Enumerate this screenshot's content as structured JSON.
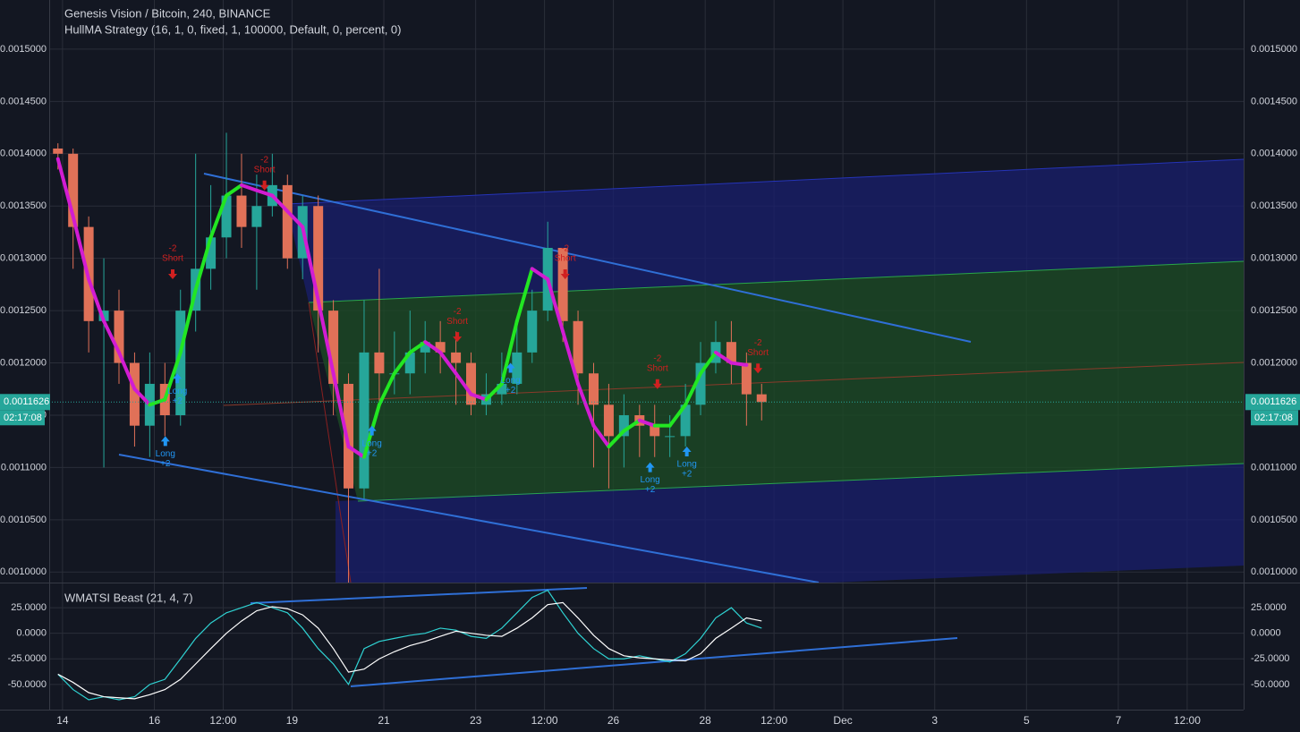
{
  "chart_data": [
    {
      "type": "candlestick",
      "title": "Genesis Vision / Bitcoin, 240, BINANCE",
      "subtitle": "HullMA Strategy (16, 1, 0, fixed, 1, 100000, Default, 0, percent, 0)",
      "x": [
        -0.1,
        0.23,
        0.57,
        0.9,
        1.23,
        1.57,
        1.9,
        2.23,
        2.57,
        2.9,
        3.23,
        3.57,
        3.9,
        4.23,
        4.57,
        4.9,
        5.23,
        5.57,
        5.9,
        6.23,
        6.57,
        6.9,
        7.23,
        7.57,
        7.9,
        8.23,
        8.57,
        8.9,
        9.23,
        9.57,
        9.9,
        10.23,
        10.57,
        10.9,
        11.23,
        11.57,
        11.9,
        12.23,
        12.57,
        12.9,
        13.23,
        13.57,
        13.9,
        14.23,
        14.57,
        14.9,
        15.23
      ],
      "open": [
        0.001405,
        0.0014,
        0.00133,
        0.00124,
        0.00125,
        0.0012,
        0.00114,
        0.00118,
        0.00115,
        0.00125,
        0.00129,
        0.00132,
        0.00136,
        0.00133,
        0.00135,
        0.00137,
        0.0013,
        0.00135,
        0.00125,
        0.00118,
        0.00108,
        0.00121,
        0.00119,
        0.00119,
        0.00121,
        0.00122,
        0.00121,
        0.0012,
        0.00116,
        0.00117,
        0.00118,
        0.00121,
        0.00125,
        0.00131,
        0.00124,
        0.00119,
        0.00116,
        0.00113,
        0.00115,
        0.00114,
        0.00113,
        0.00113,
        0.00116,
        0.0012,
        0.00122,
        0.0012,
        0.00117
      ],
      "high": [
        0.00141,
        0.001405,
        0.00134,
        0.0013,
        0.00127,
        0.00121,
        0.00121,
        0.0012,
        0.00127,
        0.0014,
        0.00137,
        0.00142,
        0.0014,
        0.00138,
        0.0014,
        0.00138,
        0.00136,
        0.00136,
        0.00126,
        0.00119,
        0.00126,
        0.00129,
        0.00123,
        0.00125,
        0.00124,
        0.00124,
        0.00123,
        0.00121,
        0.00119,
        0.00121,
        0.00124,
        0.00127,
        0.001335,
        0.00131,
        0.00125,
        0.0012,
        0.00118,
        0.00117,
        0.00116,
        0.00116,
        0.00115,
        0.00118,
        0.00122,
        0.00124,
        0.00124,
        0.00121,
        0.00118
      ],
      "low": [
        0.001385,
        0.00129,
        0.00121,
        0.0011,
        0.00118,
        0.00112,
        0.00111,
        0.00113,
        0.00114,
        0.00123,
        0.00127,
        0.0013,
        0.00131,
        0.00127,
        0.00134,
        0.00129,
        0.00128,
        0.00121,
        0.00115,
        0.00099,
        0.00107,
        0.00116,
        0.00117,
        0.00117,
        0.00119,
        0.00119,
        0.00116,
        0.00115,
        0.00115,
        0.00116,
        0.00117,
        0.0012,
        0.00124,
        0.00122,
        0.00116,
        0.0011,
        0.00108,
        0.0011,
        0.00111,
        0.00111,
        0.00111,
        0.00112,
        0.00115,
        0.00119,
        0.00118,
        0.00114,
        0.001145
      ],
      "close": [
        0.0014,
        0.00133,
        0.00124,
        0.00125,
        0.0012,
        0.00114,
        0.00118,
        0.00115,
        0.00125,
        0.00129,
        0.00132,
        0.00136,
        0.00133,
        0.00135,
        0.00137,
        0.0013,
        0.00135,
        0.00125,
        0.00118,
        0.00108,
        0.00121,
        0.00119,
        0.00119,
        0.00121,
        0.00122,
        0.00121,
        0.0012,
        0.00116,
        0.00117,
        0.00118,
        0.00121,
        0.00125,
        0.00131,
        0.00124,
        0.00119,
        0.00116,
        0.00113,
        0.00115,
        0.00114,
        0.00113,
        0.00113,
        0.00116,
        0.0012,
        0.00122,
        0.0012,
        0.00117,
        0.0011626
      ],
      "up_color": "#26a69a",
      "down_color": "#e07158",
      "hull": [
        0.001395,
        0.00134,
        0.00128,
        0.00124,
        0.00121,
        0.001175,
        0.00116,
        0.001165,
        0.00121,
        0.00127,
        0.00132,
        0.00136,
        0.00137,
        0.001365,
        0.00136,
        0.001345,
        0.00133,
        0.00126,
        0.00119,
        0.00112,
        0.00111,
        0.00116,
        0.00119,
        0.00121,
        0.00122,
        0.00121,
        0.00119,
        0.00117,
        0.001165,
        0.00118,
        0.00124,
        0.00129,
        0.00128,
        0.00123,
        0.00118,
        0.00114,
        0.00112,
        0.001135,
        0.001145,
        0.00114,
        0.00114,
        0.00116,
        0.00119,
        0.00121,
        0.0012,
        0.001198,
        null
      ],
      "hull_up_color": "#22e622",
      "hull_down_color": "#d21cd2",
      "signals": [
        {
          "x": 2.24,
          "price": 0.00113,
          "label": "Long",
          "size": "+2",
          "color": "#2196f3",
          "direction": "up"
        },
        {
          "x": 2.5,
          "price": 0.00119,
          "label": "Long",
          "size": "+2",
          "color": "#2196f3",
          "direction": "up"
        },
        {
          "x": 2.4,
          "price": 0.00128,
          "label": "Short",
          "size": "-2",
          "color": "#d02020",
          "direction": "down"
        },
        {
          "x": 4.4,
          "price": 0.001365,
          "label": "Short",
          "size": "-2",
          "color": "#d02020",
          "direction": "down"
        },
        {
          "x": 6.74,
          "price": 0.00114,
          "label": "Long",
          "size": "+2",
          "color": "#2196f3",
          "direction": "up"
        },
        {
          "x": 8.6,
          "price": 0.00122,
          "label": "Short",
          "size": "-2",
          "color": "#d02020",
          "direction": "down"
        },
        {
          "x": 9.76,
          "price": 0.0012,
          "label": "Long",
          "size": "+2",
          "color": "#2196f3",
          "direction": "up"
        },
        {
          "x": 10.95,
          "price": 0.00128,
          "label": "Short",
          "size": "-2",
          "color": "#d02020",
          "direction": "down"
        },
        {
          "x": 12.8,
          "price": 0.001105,
          "label": "Long",
          "size": "+2",
          "color": "#2196f3",
          "direction": "up"
        },
        {
          "x": 12.96,
          "price": 0.001175,
          "label": "Short",
          "size": "-2",
          "color": "#d02020",
          "direction": "down"
        },
        {
          "x": 13.6,
          "price": 0.00112,
          "label": "Long",
          "size": "+2",
          "color": "#2196f3",
          "direction": "up"
        },
        {
          "x": 15.15,
          "price": 0.00119,
          "label": "Short",
          "size": "-2",
          "color": "#d02020",
          "direction": "down"
        }
      ],
      "last_price": 0.0011626,
      "countdown": "02:17:08",
      "last_price_color": "#26a69a",
      "xlim": [
        -0.29,
        25.73
      ],
      "xticks": [
        {
          "value": 0,
          "label": "14"
        },
        {
          "value": 2,
          "label": "16"
        },
        {
          "value": 3.5,
          "label": "12:00"
        },
        {
          "value": 5,
          "label": "19"
        },
        {
          "value": 7,
          "label": "21"
        },
        {
          "value": 9,
          "label": "23"
        },
        {
          "value": 10.5,
          "label": "12:00"
        },
        {
          "value": 12,
          "label": "26"
        },
        {
          "value": 14,
          "label": "28"
        },
        {
          "value": 15.5,
          "label": "12:00"
        },
        {
          "value": 17,
          "label": "Dec"
        },
        {
          "value": 19,
          "label": "3"
        },
        {
          "value": 21,
          "label": "5"
        },
        {
          "value": 23,
          "label": "7"
        },
        {
          "value": 24.5,
          "label": "12:00"
        }
      ],
      "ylim": [
        0.00099,
        0.001547
      ],
      "yticks": [
        {
          "value": 0.001,
          "label": "0.0010000"
        },
        {
          "value": 0.00105,
          "label": "0.0010500"
        },
        {
          "value": 0.0011,
          "label": "0.0011000"
        },
        {
          "value": 0.00115,
          "label": "0.0011500"
        },
        {
          "value": 0.0012,
          "label": "0.0012000"
        },
        {
          "value": 0.00125,
          "label": "0.0012500"
        },
        {
          "value": 0.0013,
          "label": "0.0013000"
        },
        {
          "value": 0.00135,
          "label": "0.0013500"
        },
        {
          "value": 0.0014,
          "label": "0.0014000"
        },
        {
          "value": 0.00145,
          "label": "0.0014500"
        },
        {
          "value": 0.0015,
          "label": "0.0015000"
        }
      ],
      "grid": true
    },
    {
      "type": "line",
      "title": "WMATSI Beast (21, 4, 7)",
      "x": [
        -0.1,
        0.23,
        0.57,
        0.9,
        1.23,
        1.57,
        1.9,
        2.23,
        2.57,
        2.9,
        3.23,
        3.57,
        3.9,
        4.23,
        4.57,
        4.9,
        5.23,
        5.57,
        5.9,
        6.23,
        6.57,
        6.9,
        7.23,
        7.57,
        7.9,
        8.23,
        8.57,
        8.9,
        9.23,
        9.57,
        9.9,
        10.23,
        10.57,
        10.9,
        11.23,
        11.57,
        11.9,
        12.23,
        12.57,
        12.9,
        13.23,
        13.57,
        13.9,
        14.23,
        14.57,
        14.9,
        15.23
      ],
      "series": [
        {
          "color": "#2fd3d3",
          "values": [
            -40,
            -55,
            -65,
            -62,
            -65,
            -62,
            -50,
            -45,
            -25,
            -5,
            10,
            20,
            25,
            30,
            25,
            20,
            5,
            -15,
            -30,
            -50,
            -15,
            -8,
            -5,
            -2,
            0,
            5,
            3,
            -3,
            -5,
            5,
            20,
            35,
            42,
            20,
            0,
            -15,
            -25,
            -25,
            -22,
            -25,
            -28,
            -20,
            -5,
            15,
            25,
            10,
            5
          ]
        },
        {
          "color": "#ffffff",
          "values": [
            -40,
            -48,
            -58,
            -62,
            -63,
            -64,
            -60,
            -55,
            -45,
            -30,
            -15,
            0,
            12,
            22,
            26,
            24,
            18,
            5,
            -15,
            -38,
            -35,
            -25,
            -18,
            -12,
            -8,
            -3,
            2,
            0,
            -2,
            -3,
            5,
            15,
            28,
            30,
            15,
            -2,
            -15,
            -22,
            -24,
            -25,
            -26,
            -27,
            -20,
            -5,
            5,
            15,
            12
          ]
        }
      ],
      "xlim": [
        -0.29,
        25.73
      ],
      "ylim": [
        -74.6,
        47.8
      ],
      "yticks": [
        {
          "value": -50,
          "label": "-50.0000"
        },
        {
          "value": -25,
          "label": "-25.0000"
        },
        {
          "value": 0,
          "label": "0.0000"
        },
        {
          "value": 25,
          "label": "25.0000"
        }
      ],
      "grid": true
    }
  ]
}
